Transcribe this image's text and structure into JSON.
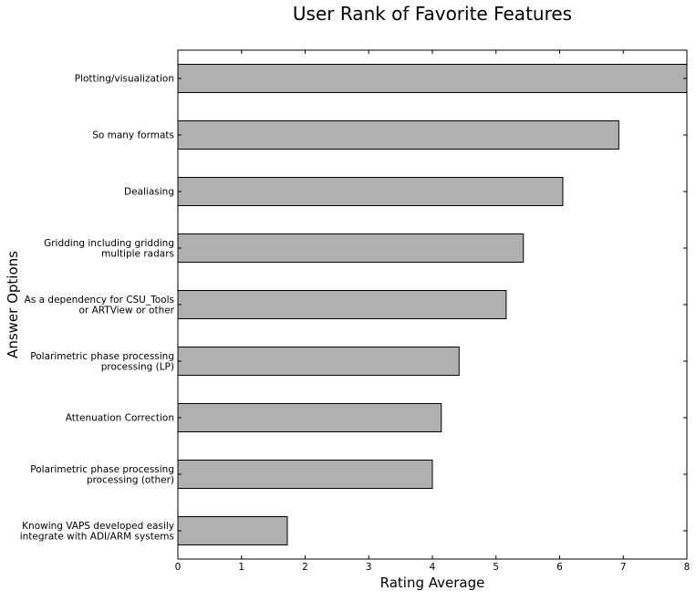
{
  "chart_data": {
    "type": "bar",
    "orientation": "horizontal",
    "title": "User Rank of Favorite Features",
    "xlabel": "Rating Average",
    "ylabel": "Answer Options",
    "xlim": [
      0,
      8
    ],
    "x_ticks": [
      "0",
      "1",
      "2",
      "3",
      "4",
      "5",
      "6",
      "7",
      "8"
    ],
    "grid": false,
    "categories": [
      [
        "Plotting/visualization"
      ],
      [
        "So many formats"
      ],
      [
        "Dealiasing"
      ],
      [
        "Gridding including gridding",
        "multiple radars"
      ],
      [
        "As a dependency for CSU_Tools",
        "or ARTView or other"
      ],
      [
        "Polarimetric phase processing",
        "processing (LP)"
      ],
      [
        "Attenuation Correction"
      ],
      [
        "Polarimetric phase processing",
        "processing (other)"
      ],
      [
        "Knowing VAPS developed easily",
        "integrate with ADI/ARM systems"
      ]
    ],
    "values": [
      8.0,
      6.93,
      6.05,
      5.43,
      5.16,
      4.42,
      4.14,
      4.0,
      1.72
    ],
    "bar_color": "#b0b0b0",
    "edge_color": "#000000"
  }
}
